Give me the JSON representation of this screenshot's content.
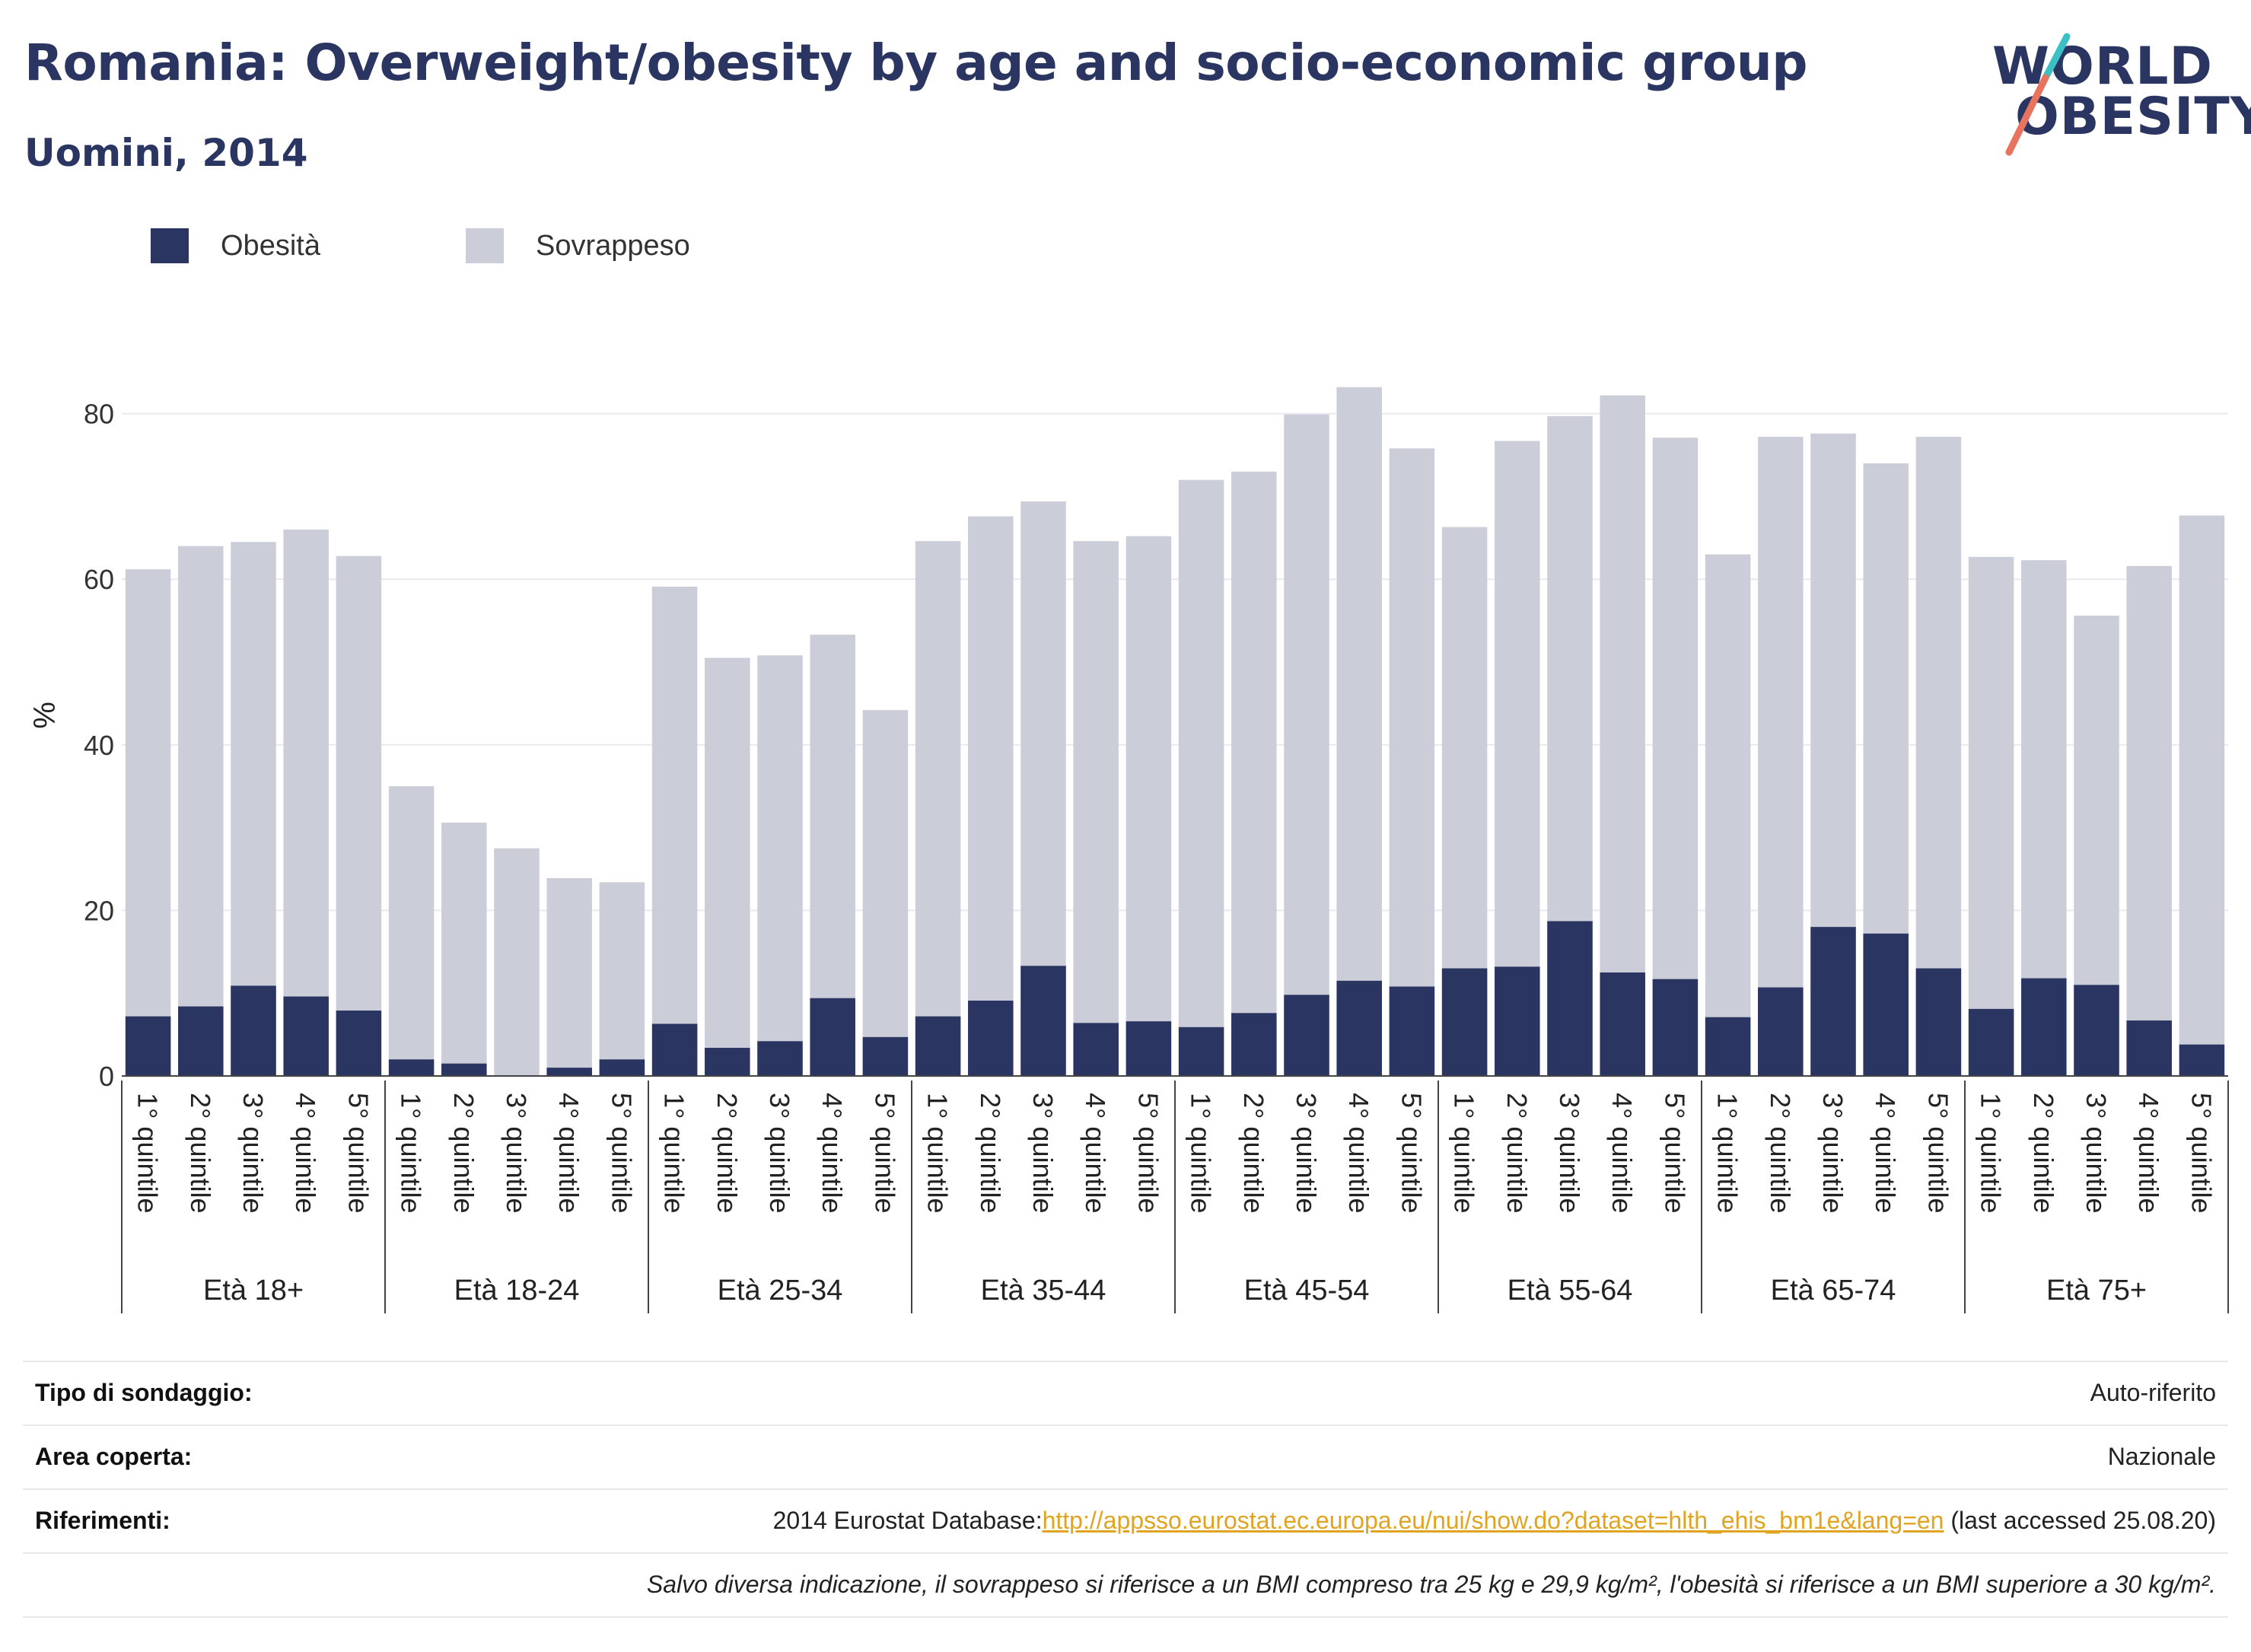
{
  "header": {
    "title": "Romania: Overweight/obesity by age and socio-economic group",
    "subtitle": "Uomini, 2014"
  },
  "logo": {
    "line1": "WORLD",
    "line2": "OBESITY"
  },
  "colors": {
    "obesity": "#2b3561",
    "overweight": "#cbcdd9",
    "grid": "#e9e9ee",
    "axis": "#444444"
  },
  "legend": {
    "items": [
      {
        "label": "Obesità",
        "color": "#2b3561"
      },
      {
        "label": "Sovrappeso",
        "color": "#cbcdd9"
      }
    ]
  },
  "chart_data": {
    "type": "bar",
    "stacked": "overlay",
    "ylabel": "%",
    "ylim": [
      0,
      90
    ],
    "yticks": [
      0,
      20,
      40,
      60,
      80
    ],
    "grid": true,
    "legend_position": "top-left",
    "quintile_labels": [
      "1° quintile",
      "2° quintile",
      "3° quintile",
      "4° quintile",
      "5° quintile"
    ],
    "groups": [
      "Età 18+",
      "Età 18-24",
      "Età 25-34",
      "Età 35-44",
      "Età 45-54",
      "Età 55-64",
      "Età 65-74",
      "Età 75+"
    ],
    "series": [
      {
        "name": "Obesità",
        "values": [
          [
            7.2,
            8.4,
            10.9,
            9.6,
            7.9
          ],
          [
            2.0,
            1.5,
            0.0,
            1.0,
            2.0
          ],
          [
            6.3,
            3.4,
            4.2,
            9.4,
            4.7
          ],
          [
            7.2,
            9.1,
            13.3,
            6.4,
            6.6
          ],
          [
            5.9,
            7.6,
            9.8,
            11.5,
            10.8
          ],
          [
            13.0,
            13.2,
            18.7,
            12.5,
            11.7
          ],
          [
            7.1,
            10.7,
            18.0,
            17.2,
            13.0
          ],
          [
            8.1,
            11.8,
            11.0,
            6.7,
            3.8
          ]
        ]
      },
      {
        "name": "Sovrappeso",
        "values": [
          [
            61.2,
            64.0,
            64.5,
            66.0,
            62.8
          ],
          [
            35.0,
            30.6,
            27.5,
            23.9,
            23.4
          ],
          [
            59.1,
            50.5,
            50.8,
            53.3,
            44.2
          ],
          [
            64.6,
            67.6,
            69.4,
            64.6,
            65.2
          ],
          [
            72.0,
            73.0,
            79.9,
            83.2,
            75.8
          ],
          [
            66.3,
            76.7,
            79.7,
            82.2,
            77.1
          ],
          [
            63.0,
            77.2,
            77.6,
            74.0,
            77.2
          ],
          [
            62.7,
            62.3,
            55.6,
            61.6,
            67.7
          ]
        ]
      }
    ]
  },
  "footer": {
    "survey_type_label": "Tipo di sondaggio:",
    "survey_type_value": "Auto-riferito",
    "area_label": "Area coperta:",
    "area_value": "Nazionale",
    "references_label": "Riferimenti:",
    "references_prefix": "2014 Eurostat Database:",
    "references_link": "http://appsso.eurostat.ec.europa.eu/nui/show.do?dataset=hlth_ehis_bm1e&lang=en",
    "references_suffix": " (last accessed 25.08.20)",
    "note": "Salvo diversa indicazione, il sovrappeso si riferisce a un BMI compreso tra 25 kg e 29,9 kg/m², l'obesità si riferisce a un BMI superiore a 30 kg/m²."
  }
}
